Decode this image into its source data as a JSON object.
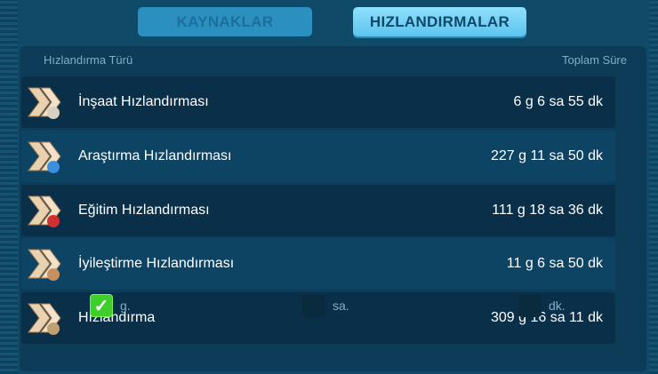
{
  "tabs": [
    {
      "label": "KAYNAKLAR",
      "active": false
    },
    {
      "label": "HIZLANDIRMALAR",
      "active": true
    }
  ],
  "table": {
    "headers": {
      "type": "Hızlandırma Türü",
      "total": "Toplam Süre"
    },
    "rows": [
      {
        "name": "İnşaat Hızlandırması",
        "total": "6 g 6 sa 55 dk",
        "icon": "construction-speedup-icon"
      },
      {
        "name": "Araştırma Hızlandırması",
        "total": "227 g 11 sa 50 dk",
        "icon": "research-speedup-icon"
      },
      {
        "name": "Eğitim Hızlandırması",
        "total": "111 g 18 sa 36 dk",
        "icon": "training-speedup-icon"
      },
      {
        "name": "İyileştirme Hızlandırması",
        "total": "11 g 6 sa 50 dk",
        "icon": "healing-speedup-icon"
      },
      {
        "name": "Hızlandırma",
        "total": "309 g 16 sa 11 dk",
        "icon": "universal-speedup-icon"
      }
    ]
  },
  "units": [
    {
      "label": "g.",
      "checked": true
    },
    {
      "label": "sa.",
      "checked": false
    },
    {
      "label": "dk.",
      "checked": false
    }
  ]
}
